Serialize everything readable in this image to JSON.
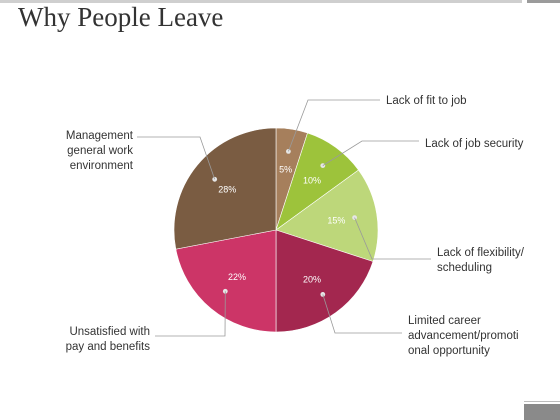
{
  "slide": {
    "title": "Why People Leave"
  },
  "chart_data": {
    "type": "pie",
    "title": "Why People Leave",
    "categories": [
      "Lack of fit to job",
      "Lack of job security",
      "Lack of flexibility/ scheduling",
      "Limited career advancement/promotional opportunity",
      "Unsatisfied with pay and benefits",
      "Management general work environment"
    ],
    "values": [
      5,
      10,
      15,
      20,
      22,
      28
    ],
    "value_labels": [
      "5%",
      "10%",
      "15%",
      "20%",
      "22%",
      "28%"
    ],
    "legend_lines": [
      [
        "Lack of fit to job"
      ],
      [
        "Lack of job security"
      ],
      [
        "Lack of flexibility/",
        "scheduling"
      ],
      [
        "Limited career",
        "advancement/promoti",
        "onal opportunity"
      ],
      [
        "Unsatisfied with",
        "pay and benefits"
      ],
      [
        "Management",
        "general work",
        "environment"
      ]
    ],
    "colors": [
      "#a67f5c",
      "#9dc33b",
      "#bdd77a",
      "#a3274f",
      "#cc3567",
      "#7a5c42"
    ],
    "legend": "outside-callouts"
  }
}
